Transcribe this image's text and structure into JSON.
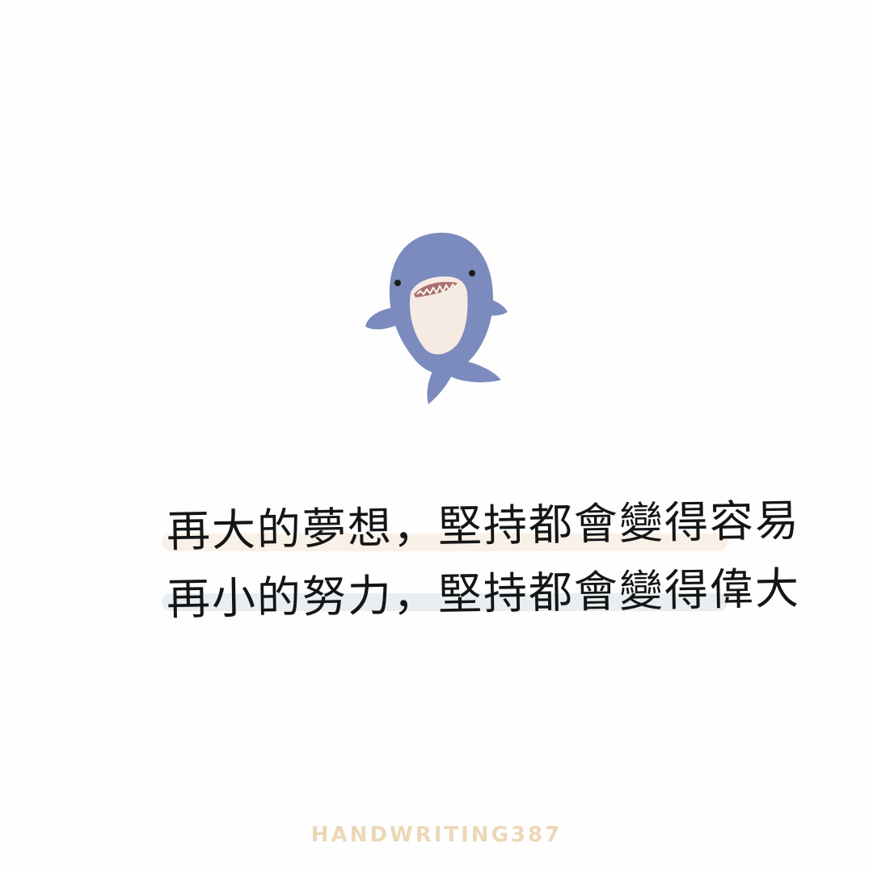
{
  "quote": {
    "line1": "再大的夢想，堅持都會變得容易",
    "line2": "再小的努力，堅持都會變得偉大"
  },
  "signature": "HANDWRITING387",
  "colors": {
    "background": "#fefefe",
    "shark_body": "#7b8bbd",
    "shark_belly": "#f6ebe3",
    "highlight_line1": "#f8eee6",
    "highlight_line2": "#e6ecf0",
    "text": "#151515",
    "signature": "#ecd7b7"
  },
  "illustration": {
    "icon": "shark-icon"
  }
}
